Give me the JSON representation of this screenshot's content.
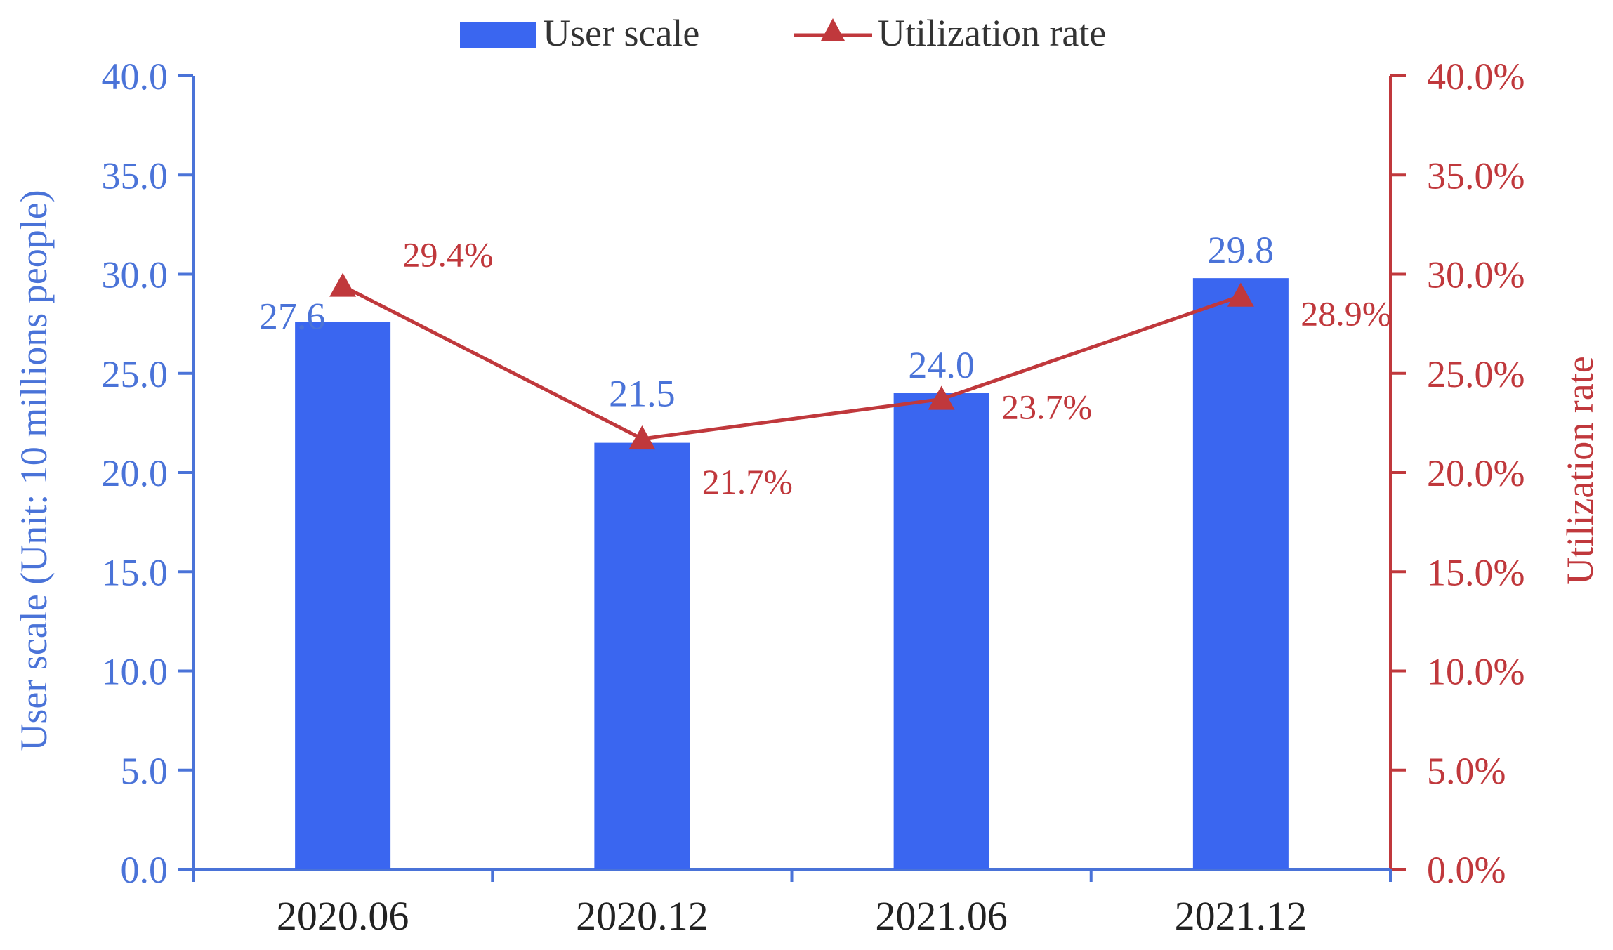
{
  "chart_data": {
    "type": "bar",
    "categories": [
      "2020.06",
      "2020.12",
      "2021.06",
      "2021.12"
    ],
    "series": [
      {
        "name": "User scale",
        "kind": "bar",
        "axis": "left",
        "values": [
          27.6,
          21.5,
          24.0,
          29.8
        ],
        "labels": [
          "27.6",
          "21.5",
          "24.0",
          "29.8"
        ],
        "color": "#3a66f0",
        "label_color": "#4a73d8"
      },
      {
        "name": "Utilization rate",
        "kind": "line",
        "axis": "right",
        "values": [
          29.4,
          21.7,
          23.7,
          28.9
        ],
        "labels": [
          "29.4%",
          "21.7%",
          "23.7%",
          "28.9%"
        ],
        "color": "#c0383c",
        "marker": "triangle"
      }
    ],
    "y_left": {
      "label": "User scale (Unit: 10 millions people)",
      "range": [
        0,
        40
      ],
      "ticks": [
        "0.0",
        "5.0",
        "10.0",
        "15.0",
        "20.0",
        "25.0",
        "30.0",
        "35.0",
        "40.0"
      ],
      "color": "#4a73d8"
    },
    "y_right": {
      "label": "Utilization rate",
      "range": [
        0,
        40
      ],
      "ticks": [
        "0.0%",
        "5.0%",
        "10.0%",
        "15.0%",
        "20.0%",
        "25.0%",
        "30.0%",
        "35.0%",
        "40.0%"
      ],
      "color": "#c0383c"
    },
    "legend": {
      "placement": "top-center",
      "items": [
        "User scale",
        "Utilization rate"
      ]
    },
    "grid": false,
    "axis_line_color": "#4a73d8",
    "x_tick_color": "#222222"
  }
}
